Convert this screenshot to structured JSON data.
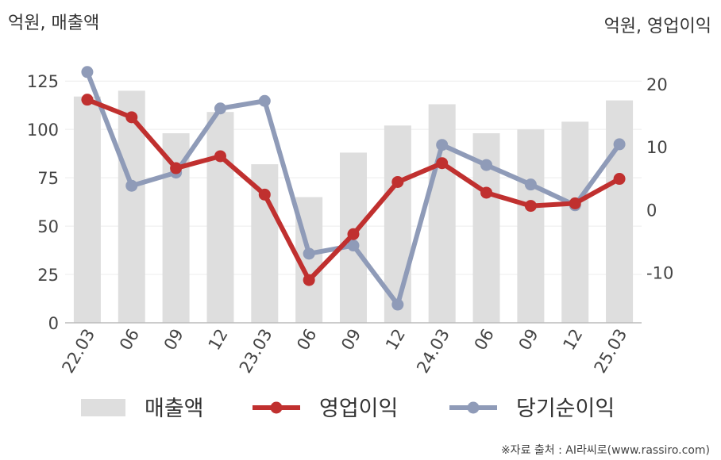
{
  "chart_data": {
    "type": "bar+line",
    "categories": [
      "22.03",
      "06",
      "09",
      "12",
      "23.03",
      "06",
      "09",
      "12",
      "24.03",
      "06",
      "09",
      "12",
      "25.03"
    ],
    "left_axis": {
      "title": "억원, 매출액",
      "range": [
        0,
        130
      ],
      "ticks": [
        "0",
        "25",
        "50",
        "75",
        "100",
        "125"
      ]
    },
    "right_axis": {
      "title": "억원, 영업이익",
      "range": [
        -18,
        22
      ],
      "ticks": [
        "-10",
        "0",
        "10",
        "20"
      ]
    },
    "series": [
      {
        "name": "매출액",
        "type": "bar",
        "axis": "left",
        "color": "#dedede",
        "values": [
          117,
          120,
          98,
          109,
          82,
          65,
          88,
          102,
          113,
          98,
          100,
          104,
          115
        ]
      },
      {
        "name": "영업이익",
        "type": "line",
        "axis": "right",
        "color": "#c0302f",
        "values": [
          17.5,
          14.7,
          6.6,
          8.5,
          2.4,
          -11.2,
          -3.9,
          4.4,
          7.4,
          2.7,
          0.6,
          1.0,
          4.9
        ]
      },
      {
        "name": "당기순이익",
        "type": "line",
        "axis": "right",
        "color": "#8f9bb8",
        "values": [
          21.9,
          3.8,
          5.9,
          16.1,
          17.3,
          -7.0,
          -5.7,
          -15.1,
          10.3,
          7.1,
          4.0,
          0.7,
          10.4
        ]
      }
    ],
    "grid": true,
    "legend_position": "bottom"
  },
  "source_text": "※자료 출처 : AI라씨로(www.rassiro.com)"
}
